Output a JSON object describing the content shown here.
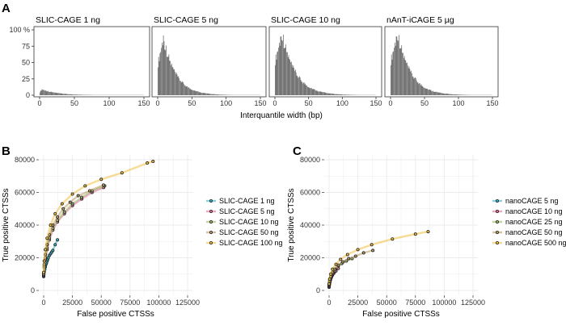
{
  "panel_labels": {
    "a": "A",
    "b": "B",
    "c": "C"
  },
  "colors": {
    "bar": "#595959",
    "frame": "#333333",
    "grid": "#ebebeb",
    "points": "#222222"
  },
  "chart_data": [
    {
      "id": "A",
      "type": "bar",
      "xlabel": "Interquantile width (bp)",
      "ylabel": "",
      "xticks": [
        "0",
        "50",
        "100",
        "150"
      ],
      "yticks": [
        "0",
        "25",
        "50",
        "75",
        "100 %"
      ],
      "xlim": [
        0,
        150
      ],
      "ylim": [
        0,
        100
      ],
      "panels": [
        {
          "title": "SLIC-CAGE 1 ng",
          "peak_x": 3,
          "peak_y": 9,
          "decay": 0.045
        },
        {
          "title": "SLIC-CAGE 5 ng",
          "peak_x": 8,
          "peak_y": 88,
          "decay": 0.055
        },
        {
          "title": "SLIC-CAGE 10 ng",
          "peak_x": 10,
          "peak_y": 95,
          "decay": 0.05
        },
        {
          "title": "nAnT-iCAGE 5 µg",
          "peak_x": 10,
          "peak_y": 95,
          "decay": 0.052
        }
      ]
    },
    {
      "id": "B",
      "type": "line",
      "xlabel": "False positive CTSSs",
      "ylabel": "True positive CTSSs",
      "xticks": [
        "0",
        "25000",
        "50000",
        "75000",
        "100000",
        "125000"
      ],
      "yticks": [
        "0",
        "20000",
        "40000",
        "60000",
        "80000"
      ],
      "xlim": [
        0,
        125000
      ],
      "ylim": [
        0,
        80000
      ],
      "grid": true,
      "legend_position": "right",
      "series": [
        {
          "name": "SLIC-CAGE 1 ng",
          "color": "#3ab0c8",
          "x": [
            0,
            200,
            500,
            1000,
            1500,
            2000,
            2500,
            3000,
            3500,
            4000,
            5000,
            6000,
            7000,
            8000,
            10000,
            12000
          ],
          "y": [
            8500,
            10000,
            11500,
            13000,
            14500,
            16000,
            17000,
            18000,
            19000,
            20000,
            21500,
            22500,
            23500,
            24500,
            28000,
            31000
          ]
        },
        {
          "name": "SLIC-CAGE 5 ng",
          "color": "#e0709a",
          "x": [
            0,
            500,
            1500,
            3000,
            5000,
            8000,
            12000,
            18000,
            25000,
            33000,
            42000,
            52000
          ],
          "y": [
            9000,
            14000,
            19000,
            25000,
            31000,
            37000,
            42000,
            47000,
            52000,
            56000,
            60000,
            63000
          ]
        },
        {
          "name": "SLIC-CAGE 10 ng",
          "color": "#9bb864",
          "x": [
            0,
            500,
            1500,
            3000,
            5000,
            8000,
            12000,
            18000,
            25000,
            33000,
            42000,
            53000
          ],
          "y": [
            9500,
            15000,
            20000,
            26000,
            32000,
            38000,
            43000,
            48000,
            53000,
            57000,
            61000,
            64000
          ]
        },
        {
          "name": "SLIC-CAGE 50 ng",
          "color": "#b89a6a",
          "x": [
            0,
            500,
            1500,
            3000,
            5000,
            8000,
            12000,
            17000,
            23000,
            30000,
            40000,
            52000
          ],
          "y": [
            10000,
            16000,
            22000,
            28000,
            34000,
            40000,
            45000,
            50000,
            54000,
            58000,
            61000,
            64500
          ]
        },
        {
          "name": "SLIC-CAGE 100 ng",
          "color": "#f0c040",
          "x": [
            0,
            500,
            1500,
            3000,
            6000,
            10000,
            16000,
            25000,
            36000,
            50000,
            68000,
            90000,
            95000
          ],
          "y": [
            11000,
            18000,
            25000,
            32000,
            40000,
            47000,
            53000,
            59000,
            64000,
            68000,
            72000,
            78000,
            79000
          ]
        }
      ]
    },
    {
      "id": "C",
      "type": "line",
      "xlabel": "False positive CTSSs",
      "ylabel": "True positive CTSSs",
      "xticks": [
        "0",
        "25000",
        "50000",
        "75000",
        "100000",
        "125000"
      ],
      "yticks": [
        "0",
        "20000",
        "40000",
        "60000",
        "80000"
      ],
      "xlim": [
        0,
        125000
      ],
      "ylim": [
        0,
        80000
      ],
      "grid": true,
      "legend_position": "right",
      "series": [
        {
          "name": "nanoCAGE 5 ng",
          "color": "#3ab0c8",
          "x": [
            0,
            300,
            700,
            1200,
            2000,
            3000,
            4000,
            5000
          ],
          "y": [
            2000,
            3500,
            5000,
            6500,
            8000,
            9500,
            10500,
            11500
          ]
        },
        {
          "name": "nanoCAGE 10 ng",
          "color": "#e0709a",
          "x": [
            0,
            300,
            800,
            1500,
            2500,
            4000,
            6000,
            8000
          ],
          "y": [
            2500,
            4000,
            6000,
            7500,
            9000,
            10500,
            12000,
            13500
          ]
        },
        {
          "name": "nanoCAGE 25 ng",
          "color": "#9bb864",
          "x": [
            0,
            400,
            1000,
            2000,
            3500,
            5500,
            8000,
            11000,
            15000,
            20000
          ],
          "y": [
            3000,
            5000,
            7000,
            9000,
            11000,
            13000,
            15000,
            16500,
            18000,
            19500
          ]
        },
        {
          "name": "nanoCAGE 50 ng",
          "color": "#b89a6a",
          "x": [
            0,
            500,
            1500,
            3000,
            5000,
            8000,
            12000,
            17000,
            23000,
            30000,
            38000
          ],
          "y": [
            3500,
            6000,
            8500,
            11000,
            13000,
            15500,
            17500,
            19500,
            21000,
            23000,
            24500
          ]
        },
        {
          "name": "nanoCAGE 500 ng",
          "color": "#f0c040",
          "x": [
            0,
            500,
            1500,
            3000,
            6000,
            10000,
            16000,
            25000,
            37000,
            55000,
            75000,
            86000
          ],
          "y": [
            4000,
            7000,
            10000,
            13000,
            16000,
            19000,
            22000,
            25000,
            28000,
            31500,
            34500,
            36000
          ]
        }
      ]
    }
  ]
}
